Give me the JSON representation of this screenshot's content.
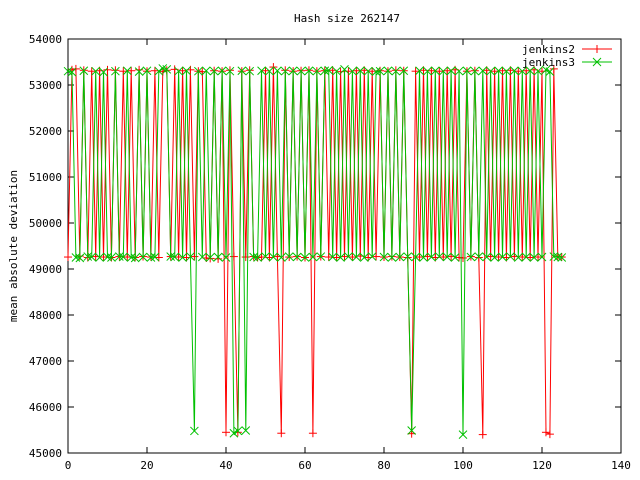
{
  "chart_data": {
    "type": "line",
    "title": "Hash size 262147",
    "xlabel": "",
    "ylabel": "mean absolute deviation",
    "xlim": [
      0,
      140
    ],
    "ylim": [
      45000,
      54000
    ],
    "xticks": [
      0,
      20,
      40,
      60,
      80,
      100,
      120,
      140
    ],
    "yticks": [
      45000,
      46000,
      47000,
      48000,
      49000,
      50000,
      51000,
      52000,
      53000,
      54000
    ],
    "legend_position": "top-right",
    "series": [
      {
        "name": "jenkins2",
        "color": "#ff0000",
        "marker": "plus",
        "x": [
          0,
          1,
          2,
          3,
          4,
          5,
          6,
          7,
          8,
          9,
          10,
          11,
          12,
          13,
          14,
          15,
          16,
          17,
          18,
          19,
          20,
          21,
          22,
          23,
          24,
          25,
          26,
          27,
          28,
          29,
          30,
          31,
          32,
          33,
          34,
          35,
          36,
          37,
          38,
          39,
          40,
          41,
          42,
          43,
          44,
          45,
          46,
          47,
          48,
          49,
          50,
          51,
          52,
          53,
          54,
          55,
          56,
          57,
          58,
          59,
          60,
          61,
          62,
          63,
          64,
          65,
          66,
          67,
          68,
          69,
          70,
          71,
          72,
          73,
          74,
          75,
          76,
          77,
          78,
          79,
          80,
          81,
          82,
          83,
          84,
          85,
          86,
          87,
          88,
          89,
          90,
          91,
          92,
          93,
          94,
          95,
          96,
          97,
          98,
          99,
          100,
          101,
          102,
          103,
          104,
          105,
          106,
          107,
          108,
          109,
          110,
          111,
          112,
          113,
          114,
          115,
          116,
          117,
          118,
          119,
          120,
          121,
          122,
          123,
          124,
          125
        ],
        "y": [
          49260,
          53330,
          53350,
          49280,
          53320,
          49250,
          53300,
          49270,
          53310,
          49260,
          53330,
          49250,
          53320,
          49270,
          53300,
          49260,
          53310,
          49250,
          53330,
          49270,
          53300,
          49260,
          53310,
          49250,
          53290,
          53320,
          49270,
          53340,
          49260,
          53310,
          49250,
          53330,
          49270,
          53300,
          53290,
          49240,
          49230,
          53310,
          49220,
          53300,
          45450,
          53320,
          49270,
          45450,
          53300,
          49260,
          53320,
          49270,
          49250,
          49260,
          53310,
          49250,
          53390,
          49270,
          45430,
          53320,
          49260,
          53300,
          49270,
          53310,
          49250,
          53320,
          45430,
          53300,
          49270,
          53310,
          49260,
          53320,
          49250,
          53290,
          49270,
          53300,
          49260,
          53310,
          49280,
          53320,
          49250,
          53300,
          49270,
          53310,
          49260,
          53300,
          49270,
          53320,
          49260,
          53310,
          49250,
          45420,
          53300,
          49260,
          53320,
          49270,
          53310,
          49250,
          53300,
          49260,
          53310,
          49270,
          53330,
          49250,
          49240,
          53300,
          49270,
          53310,
          49250,
          45400,
          53320,
          49270,
          53300,
          49260,
          53310,
          49250,
          53320,
          49270,
          53300,
          49260,
          53310,
          49250,
          53330,
          49260,
          53300,
          45450,
          45410,
          53350,
          49270,
          49260
        ]
      },
      {
        "name": "jenkins3",
        "color": "#00c000",
        "marker": "cross",
        "x": [
          0,
          1,
          2,
          3,
          4,
          5,
          6,
          7,
          8,
          9,
          10,
          11,
          12,
          13,
          14,
          15,
          16,
          17,
          18,
          19,
          20,
          21,
          22,
          23,
          24,
          25,
          26,
          27,
          28,
          29,
          30,
          31,
          32,
          33,
          34,
          35,
          36,
          37,
          38,
          39,
          40,
          41,
          42,
          43,
          44,
          45,
          46,
          47,
          48,
          49,
          50,
          51,
          52,
          53,
          54,
          55,
          56,
          57,
          58,
          59,
          60,
          61,
          62,
          63,
          64,
          65,
          66,
          67,
          68,
          69,
          70,
          71,
          72,
          73,
          74,
          75,
          76,
          77,
          78,
          79,
          80,
          81,
          82,
          83,
          84,
          85,
          86,
          87,
          88,
          89,
          90,
          91,
          92,
          93,
          94,
          95,
          96,
          97,
          98,
          99,
          100,
          101,
          102,
          103,
          104,
          105,
          106,
          107,
          108,
          109,
          110,
          111,
          112,
          113,
          114,
          115,
          116,
          117,
          118,
          119,
          120,
          121,
          122,
          123,
          124,
          125
        ],
        "y": [
          53300,
          53280,
          49250,
          49240,
          53310,
          49270,
          49260,
          53300,
          49250,
          53280,
          49260,
          49250,
          53300,
          49270,
          49260,
          53310,
          49250,
          49240,
          53290,
          49260,
          53310,
          49250,
          49260,
          53300,
          53360,
          53340,
          49270,
          49260,
          53300,
          49250,
          53310,
          49270,
          45480,
          53300,
          49260,
          53310,
          49250,
          53300,
          49260,
          53310,
          49250,
          53300,
          45430,
          45480,
          53310,
          45490,
          53300,
          49260,
          49250,
          53310,
          49270,
          53300,
          49260,
          53310,
          49250,
          53300,
          49270,
          53310,
          49260,
          53300,
          49250,
          53310,
          49260,
          53300,
          49270,
          53310,
          53320,
          49260,
          53300,
          49250,
          53340,
          49270,
          53300,
          49260,
          53310,
          49250,
          53300,
          49270,
          53290,
          53300,
          49260,
          53310,
          49250,
          53300,
          49260,
          53310,
          49270,
          45490,
          49260,
          53310,
          49250,
          53300,
          49260,
          53310,
          49270,
          53300,
          49260,
          53310,
          49250,
          53300,
          45400,
          53310,
          49260,
          53300,
          49270,
          53310,
          49260,
          53300,
          49250,
          53310,
          49260,
          53300,
          49270,
          53310,
          49250,
          53300,
          49260,
          53310,
          49250,
          53300,
          49260,
          53330,
          53290,
          49270,
          49260,
          49250
        ]
      }
    ]
  }
}
